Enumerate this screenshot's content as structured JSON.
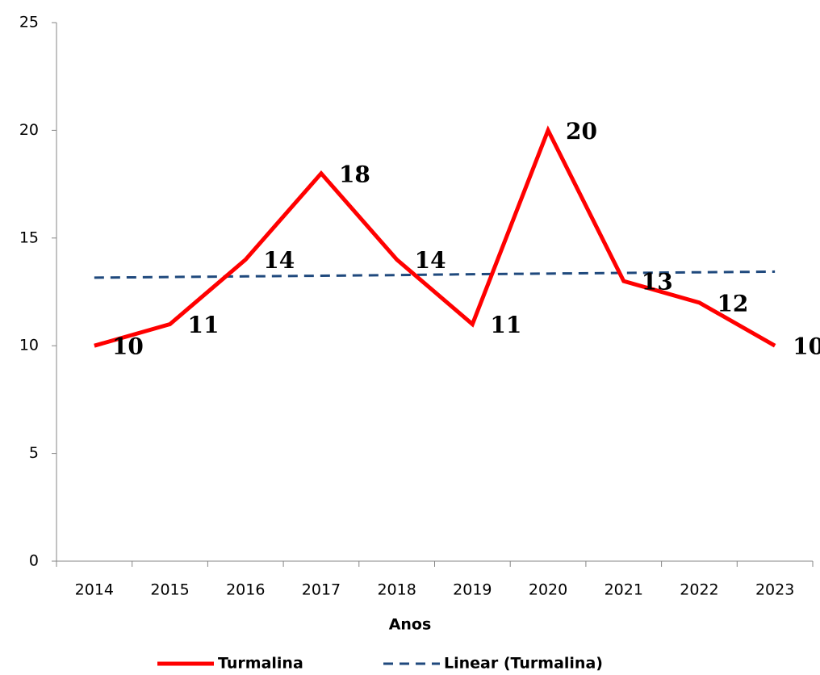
{
  "chart_data": {
    "type": "line",
    "xlabel": "Anos",
    "categories": [
      "2014",
      "2015",
      "2016",
      "2017",
      "2018",
      "2019",
      "2020",
      "2021",
      "2022",
      "2023"
    ],
    "series": [
      {
        "name": "Turmalina",
        "color": "#ff0000",
        "values": [
          10,
          11,
          14,
          18,
          14,
          11,
          20,
          13,
          12,
          10
        ],
        "data_labels": true
      },
      {
        "name": "Linear (Turmalina)",
        "color": "#1f497d",
        "dashed": true,
        "values": [
          13.16,
          13.19,
          13.22,
          13.25,
          13.28,
          13.32,
          13.35,
          13.38,
          13.41,
          13.44
        ]
      }
    ],
    "ylim": [
      0,
      25
    ],
    "yticks": [
      0,
      5,
      10,
      15,
      20,
      25
    ],
    "legend": "bottom"
  }
}
